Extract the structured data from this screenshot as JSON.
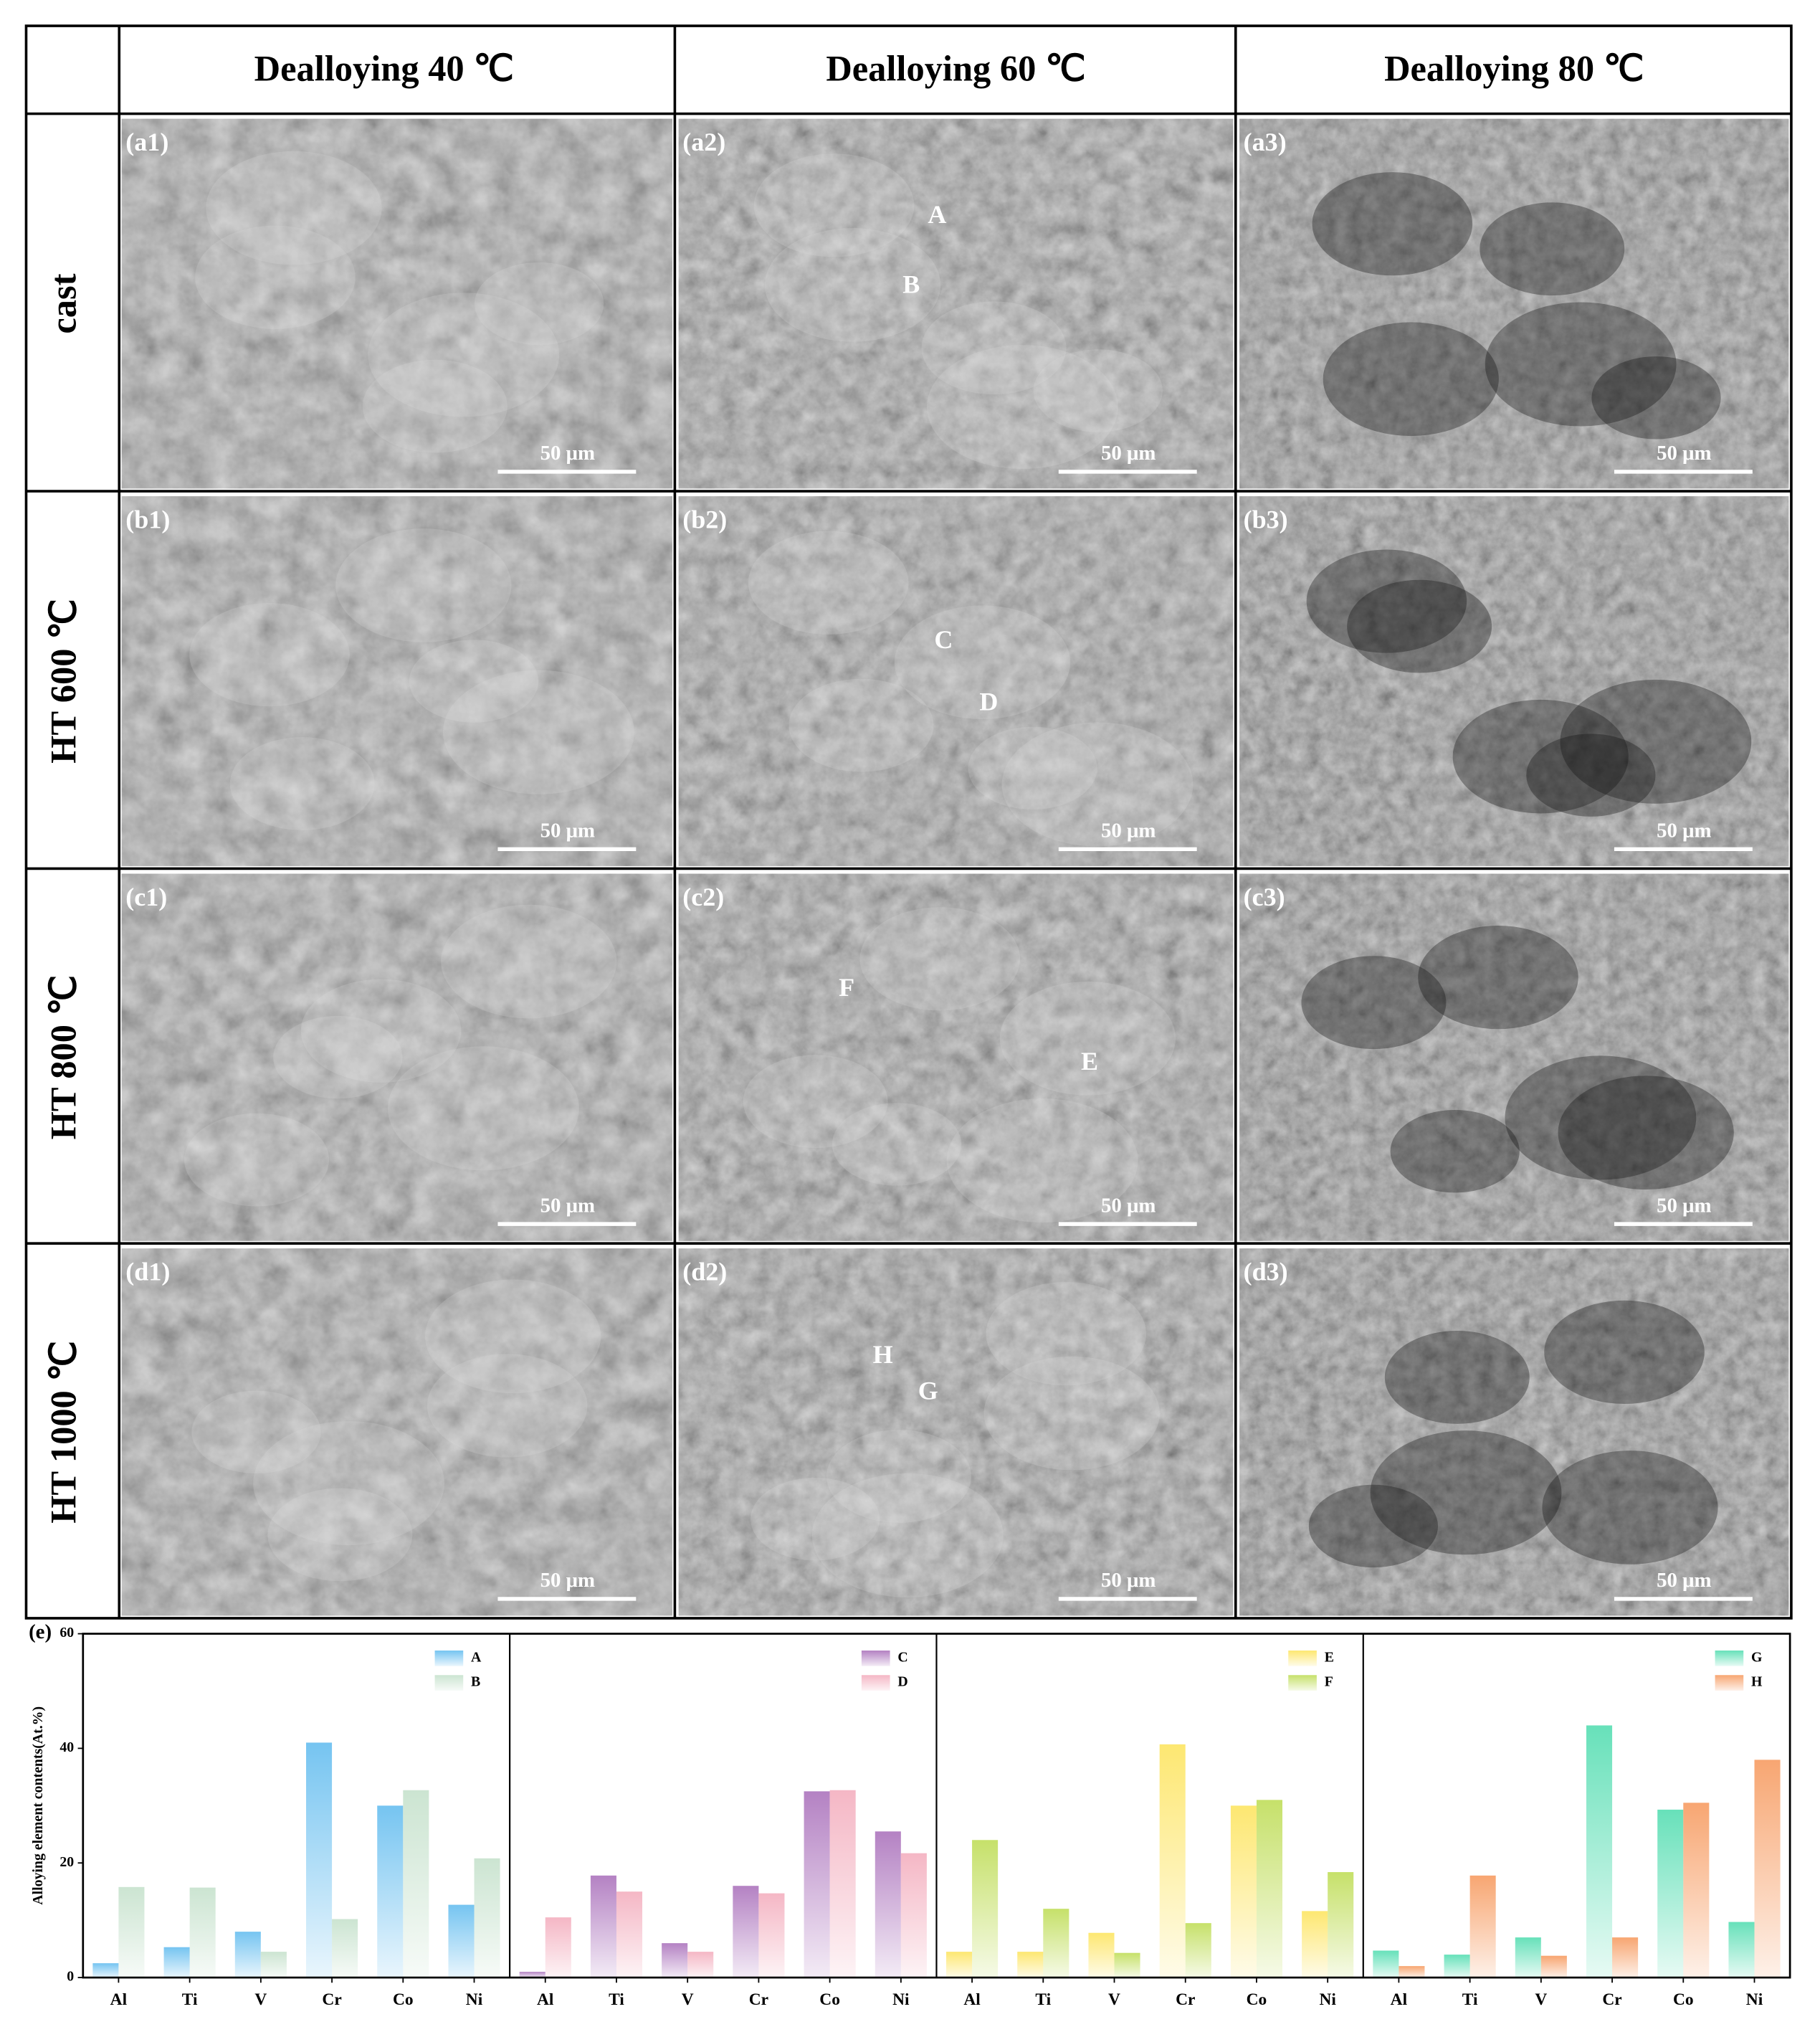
{
  "grid": {
    "column_headers": [
      "Dealloying 40 ℃",
      "Dealloying 60 ℃",
      "Dealloying 80 ℃"
    ],
    "rows": [
      {
        "header": "cast",
        "panels": [
          {
            "label": "(a1)",
            "scale_bar": "50 μm",
            "points": []
          },
          {
            "label": "(a2)",
            "scale_bar": "50 μm",
            "points": [
              "A",
              "B"
            ]
          },
          {
            "label": "(a3)",
            "scale_bar": "50 μm",
            "points": []
          }
        ]
      },
      {
        "header": "HT 600 ℃",
        "panels": [
          {
            "label": "(b1)",
            "scale_bar": "50 μm",
            "points": []
          },
          {
            "label": "(b2)",
            "scale_bar": "50 μm",
            "points": [
              "C",
              "D"
            ]
          },
          {
            "label": "(b3)",
            "scale_bar": "50 μm",
            "points": []
          }
        ]
      },
      {
        "header": "HT 800 ℃",
        "panels": [
          {
            "label": "(c1)",
            "scale_bar": "50 μm",
            "points": []
          },
          {
            "label": "(c2)",
            "scale_bar": "50 μm",
            "points": [
              "F",
              "E"
            ]
          },
          {
            "label": "(c3)",
            "scale_bar": "50 μm",
            "points": []
          }
        ]
      },
      {
        "header": "HT 1000 ℃",
        "panels": [
          {
            "label": "(d1)",
            "scale_bar": "50 μm",
            "points": []
          },
          {
            "label": "(d2)",
            "scale_bar": "50 μm",
            "points": [
              "H",
              "G"
            ]
          },
          {
            "label": "(d3)",
            "scale_bar": "50 μm",
            "points": []
          }
        ]
      }
    ]
  },
  "panel_label": "(e)",
  "chart_data": [
    {
      "type": "bar",
      "ylabel": "Alloying element contents(At.%)",
      "categories": [
        "Al",
        "Ti",
        "V",
        "Cr",
        "Co",
        "Ni"
      ],
      "ylim": [
        0,
        60
      ],
      "yticks": [
        0,
        20,
        40,
        60
      ],
      "legend": "upper right",
      "series": [
        {
          "name": "A",
          "color": "#6ec1f0",
          "values": [
            2.5,
            5.3,
            8,
            41,
            30,
            12.7
          ]
        },
        {
          "name": "B",
          "color": "#c9e3cf",
          "values": [
            15.8,
            15.7,
            4.5,
            10.2,
            32.7,
            20.8
          ]
        }
      ]
    },
    {
      "type": "bar",
      "categories": [
        "Al",
        "Ti",
        "V",
        "Cr",
        "Co",
        "Ni"
      ],
      "ylim": [
        0,
        60
      ],
      "legend": "upper right",
      "series": [
        {
          "name": "C",
          "color": "#b07bc0",
          "values": [
            1,
            17.8,
            6,
            16,
            32.5,
            25.5
          ]
        },
        {
          "name": "D",
          "color": "#f4b3c2",
          "values": [
            10.5,
            15,
            4.5,
            14.7,
            32.7,
            21.7
          ]
        }
      ]
    },
    {
      "type": "bar",
      "categories": [
        "Al",
        "Ti",
        "V",
        "Cr",
        "Co",
        "Ni"
      ],
      "ylim": [
        0,
        60
      ],
      "legend": "upper right",
      "series": [
        {
          "name": "E",
          "color": "#fde66a",
          "values": [
            4.5,
            4.5,
            7.8,
            40.7,
            30,
            11.6
          ]
        },
        {
          "name": "F",
          "color": "#c3df62",
          "values": [
            24,
            12,
            4.3,
            9.5,
            31,
            18.4
          ]
        }
      ]
    },
    {
      "type": "bar",
      "categories": [
        "Al",
        "Ti",
        "V",
        "Cr",
        "Co",
        "Ni"
      ],
      "ylim": [
        0,
        60
      ],
      "legend": "upper right",
      "series": [
        {
          "name": "G",
          "color": "#5fdfb6",
          "values": [
            4.7,
            4,
            7,
            44,
            29.3,
            9.7
          ]
        },
        {
          "name": "H",
          "color": "#f7a16a",
          "values": [
            2,
            17.8,
            3.8,
            7,
            30.5,
            38
          ]
        }
      ]
    }
  ]
}
